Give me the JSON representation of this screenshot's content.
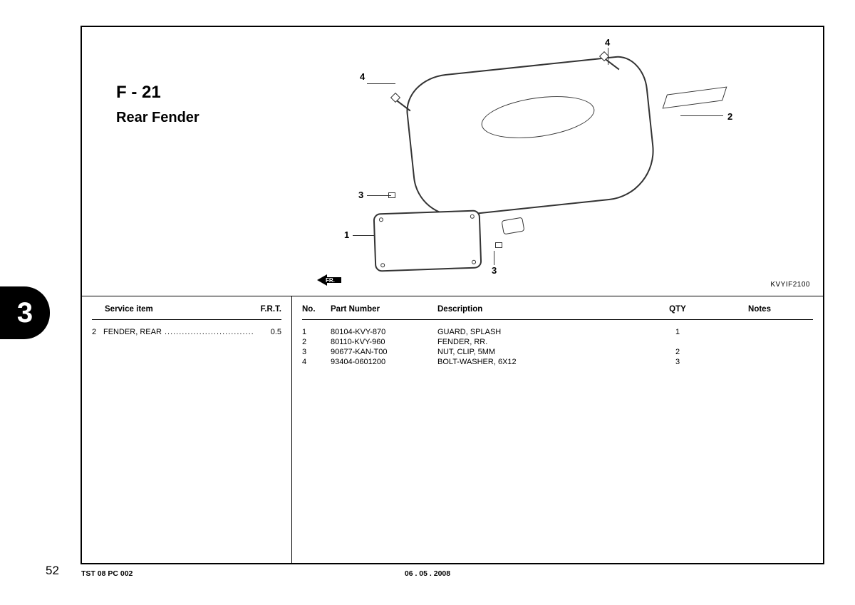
{
  "header": {
    "section_code": "F - 21",
    "section_title": "Rear Fender",
    "diagram_id": "KVYIF2100",
    "fr_label": "FR."
  },
  "callouts": {
    "c1": "1",
    "c2": "2",
    "c3a": "3",
    "c3b": "3",
    "c4a": "4",
    "c4b": "4"
  },
  "service": {
    "hdr_item": "Service item",
    "hdr_frt": "F.R.T.",
    "rows": [
      {
        "num": "2",
        "text": "FENDER, REAR",
        "dots": " .....................................",
        "frt": "0.5"
      }
    ]
  },
  "parts": {
    "hdr_no": "No.",
    "hdr_part": "Part Number",
    "hdr_desc": "Description",
    "hdr_qty": "QTY",
    "hdr_notes": "Notes",
    "rows": [
      {
        "no": "1",
        "part": "80104-KVY-870",
        "desc": "GUARD, SPLASH",
        "qty": "1",
        "notes": ""
      },
      {
        "no": "2",
        "part": "80110-KVY-960",
        "desc": "FENDER, RR.",
        "qty": "",
        "notes": ""
      },
      {
        "no": "3",
        "part": "90677-KAN-T00",
        "desc": "NUT, CLIP, 5MM",
        "qty": "2",
        "notes": ""
      },
      {
        "no": "4",
        "part": "93404-0601200",
        "desc": "BOLT-WASHER, 6X12",
        "qty": "3",
        "notes": ""
      }
    ]
  },
  "periphery": {
    "section_tab": "3",
    "page_number": "52",
    "footer_left": "TST 08 PC 002",
    "footer_center": "06 . 05 . 2008"
  }
}
